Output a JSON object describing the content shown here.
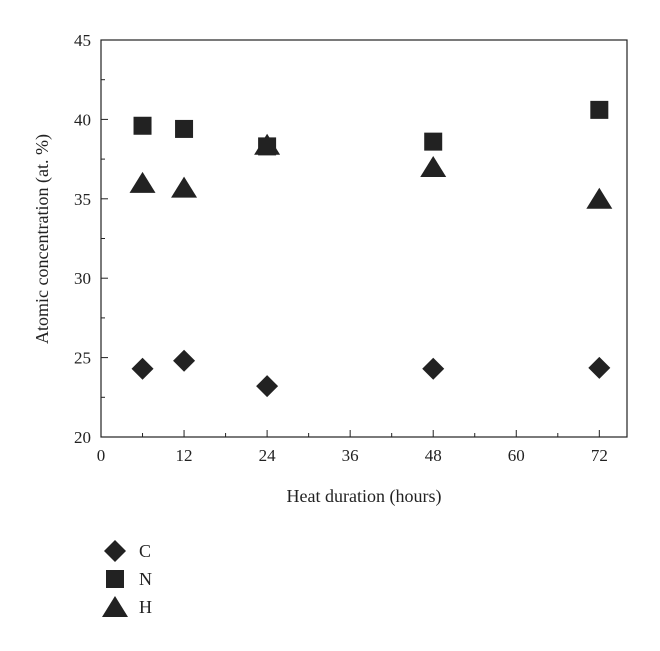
{
  "chart_data": {
    "type": "scatter",
    "xlabel": "Heat duration (hours)",
    "ylabel": "Atomic concentration (at. %)",
    "xlim": [
      0,
      76
    ],
    "ylim": [
      20,
      45
    ],
    "x_ticks": [
      0,
      12,
      24,
      36,
      48,
      60,
      72
    ],
    "y_ticks": [
      20,
      25,
      30,
      35,
      40,
      45
    ],
    "x_tick_labels": [
      "0",
      "12",
      "24",
      "36",
      "48",
      "60",
      "72"
    ],
    "y_tick_labels": [
      "20",
      "25",
      "30",
      "35",
      "40",
      "45"
    ],
    "grid": false,
    "legend_position": "bottom-left",
    "series": [
      {
        "name": "C",
        "marker": "diamond",
        "color": "#222222",
        "points": [
          [
            6,
            24.3
          ],
          [
            12,
            24.8
          ],
          [
            24,
            23.2
          ],
          [
            48,
            24.3
          ],
          [
            72,
            24.35
          ]
        ]
      },
      {
        "name": "N",
        "marker": "square",
        "color": "#222222",
        "points": [
          [
            6,
            39.6
          ],
          [
            12,
            39.4
          ],
          [
            24,
            38.3
          ],
          [
            48,
            38.6
          ],
          [
            72,
            40.6
          ]
        ]
      },
      {
        "name": "H",
        "marker": "triangle",
        "color": "#222222",
        "points": [
          [
            6,
            36.0
          ],
          [
            12,
            35.7
          ],
          [
            24,
            38.4
          ],
          [
            48,
            37.0
          ],
          [
            72,
            35.0
          ]
        ]
      }
    ]
  }
}
